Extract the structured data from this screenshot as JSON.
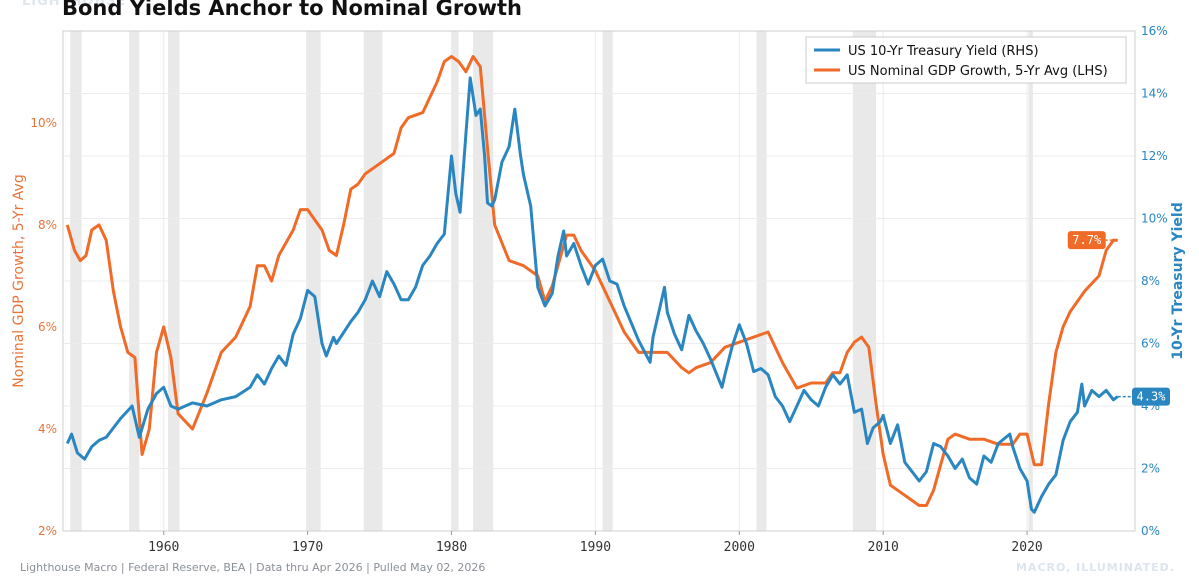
{
  "header": {
    "watermark": "LIGHTHOUSE",
    "title": "Bond Yields Anchor to Nominal Growth"
  },
  "footer": {
    "source": "Lighthouse Macro | Federal Reserve, BEA | Data thru Apr 2026 | Pulled May 02, 2026",
    "tagline": "MACRO, ILLUMINATED."
  },
  "colors": {
    "yield": "#2a86c0",
    "gdp": "#f06a28",
    "recession": "#e9e9e9"
  },
  "chart_data": {
    "type": "line",
    "title": "Bond Yields Anchor to Nominal Growth",
    "xlabel": "",
    "ylabel_left": "Nominal GDP Growth, 5-Yr Avg",
    "ylabel_right": "10-Yr Treasury Yield",
    "xlim": [
      1953.0,
      2027.5
    ],
    "ylim_left": [
      2,
      11.8
    ],
    "ylim_right": [
      0,
      16
    ],
    "x_ticks": [
      1960,
      1970,
      1980,
      1990,
      2000,
      2010,
      2020
    ],
    "x_tick_labels": [
      "1960",
      "1970",
      "1980",
      "1990",
      "2000",
      "2010",
      "2020"
    ],
    "y_left_ticks": [
      2,
      4,
      6,
      8,
      10
    ],
    "y_left_tick_labels": [
      "2%",
      "4%",
      "6%",
      "8%",
      "10%"
    ],
    "y_right_ticks": [
      0,
      2,
      4,
      6,
      8,
      10,
      12,
      14,
      16
    ],
    "y_right_tick_labels": [
      "0%",
      "2%",
      "4%",
      "6%",
      "8%",
      "10%",
      "12%",
      "14%",
      "16%"
    ],
    "grid": true,
    "legend_position": "top-right",
    "recessions": [
      [
        1953.5,
        1954.3
      ],
      [
        1957.6,
        1958.3
      ],
      [
        1960.3,
        1961.1
      ],
      [
        1969.9,
        1970.9
      ],
      [
        1973.9,
        1975.2
      ],
      [
        1980.0,
        1980.5
      ],
      [
        1981.5,
        1982.9
      ],
      [
        1990.5,
        1991.2
      ],
      [
        2001.2,
        2001.9
      ],
      [
        2007.9,
        2009.5
      ],
      [
        2020.1,
        2020.4
      ]
    ],
    "series": [
      {
        "name": "US 10-Yr Treasury Yield (RHS)",
        "axis": "right",
        "end_label": "4.3%",
        "x": [
          1953.3,
          1953.6,
          1954.0,
          1954.5,
          1955.0,
          1955.5,
          1956.0,
          1956.5,
          1957.0,
          1957.8,
          1958.3,
          1958.9,
          1959.5,
          1960.0,
          1960.5,
          1961.0,
          1961.5,
          1962.0,
          1963.0,
          1964.0,
          1965.0,
          1966.0,
          1966.5,
          1967.0,
          1967.5,
          1968.0,
          1968.5,
          1969.0,
          1969.5,
          1970.0,
          1970.5,
          1971.0,
          1971.3,
          1971.8,
          1972.0,
          1973.0,
          1973.5,
          1974.0,
          1974.5,
          1975.0,
          1975.5,
          1976.0,
          1976.5,
          1977.0,
          1977.5,
          1978.0,
          1978.5,
          1979.0,
          1979.5,
          1980.0,
          1980.3,
          1980.6,
          1981.0,
          1981.3,
          1981.7,
          1982.0,
          1982.3,
          1982.5,
          1982.8,
          1983.0,
          1983.5,
          1984.0,
          1984.4,
          1984.8,
          1985.0,
          1985.5,
          1986.0,
          1986.5,
          1987.0,
          1987.4,
          1987.8,
          1988.0,
          1988.5,
          1989.0,
          1989.5,
          1990.0,
          1990.5,
          1991.0,
          1991.5,
          1992.0,
          1993.0,
          1993.8,
          1994.0,
          1994.8,
          1995.0,
          1995.5,
          1996.0,
          1996.5,
          1997.0,
          1997.5,
          1998.0,
          1998.8,
          1999.0,
          1999.5,
          2000.0,
          2000.5,
          2001.0,
          2001.5,
          2002.0,
          2002.5,
          2003.0,
          2003.5,
          2004.0,
          2004.5,
          2005.0,
          2005.5,
          2006.0,
          2006.5,
          2007.0,
          2007.5,
          2008.0,
          2008.5,
          2008.9,
          2009.3,
          2009.8,
          2010.0,
          2010.5,
          2011.0,
          2011.5,
          2012.0,
          2012.5,
          2013.0,
          2013.5,
          2014.0,
          2014.5,
          2015.0,
          2015.5,
          2016.0,
          2016.5,
          2017.0,
          2017.5,
          2018.0,
          2018.8,
          2019.0,
          2019.5,
          2020.0,
          2020.3,
          2020.5,
          2021.0,
          2021.5,
          2022.0,
          2022.5,
          2023.0,
          2023.5,
          2023.8,
          2024.0,
          2024.5,
          2025.0,
          2025.5,
          2026.0,
          2026.3
        ],
        "values": [
          2.8,
          3.1,
          2.5,
          2.3,
          2.7,
          2.9,
          3.0,
          3.3,
          3.6,
          4.0,
          3.0,
          3.9,
          4.4,
          4.6,
          4.0,
          3.9,
          4.0,
          4.1,
          4.0,
          4.2,
          4.3,
          4.6,
          5.0,
          4.7,
          5.2,
          5.6,
          5.3,
          6.3,
          6.8,
          7.7,
          7.5,
          6.0,
          5.6,
          6.2,
          6.0,
          6.7,
          7.0,
          7.4,
          8.0,
          7.5,
          8.3,
          7.9,
          7.4,
          7.4,
          7.8,
          8.5,
          8.8,
          9.2,
          9.5,
          12.0,
          10.8,
          10.2,
          12.7,
          14.5,
          13.3,
          13.5,
          12.0,
          10.5,
          10.4,
          10.6,
          11.8,
          12.3,
          13.5,
          12.0,
          11.4,
          10.4,
          7.8,
          7.2,
          7.6,
          8.8,
          9.6,
          8.8,
          9.2,
          8.5,
          7.9,
          8.5,
          8.7,
          8.0,
          7.9,
          7.2,
          6.1,
          5.4,
          6.2,
          7.8,
          7.0,
          6.3,
          5.8,
          6.9,
          6.4,
          6.0,
          5.5,
          4.6,
          5.0,
          5.9,
          6.6,
          6.0,
          5.1,
          5.2,
          5.0,
          4.3,
          4.0,
          3.5,
          4.0,
          4.5,
          4.2,
          4.0,
          4.6,
          5.0,
          4.7,
          5.0,
          3.8,
          3.9,
          2.8,
          3.3,
          3.5,
          3.7,
          2.8,
          3.4,
          2.2,
          1.9,
          1.6,
          1.9,
          2.8,
          2.7,
          2.4,
          2.0,
          2.3,
          1.7,
          1.5,
          2.4,
          2.2,
          2.8,
          3.1,
          2.7,
          2.0,
          1.6,
          0.7,
          0.6,
          1.1,
          1.5,
          1.8,
          2.9,
          3.5,
          3.8,
          4.7,
          4.0,
          4.5,
          4.3,
          4.5,
          4.2,
          4.3
        ],
        "color": "#2a86c0"
      },
      {
        "name": "US Nominal GDP Growth, 5-Yr Avg (LHS)",
        "axis": "left",
        "end_label": "7.7%",
        "x": [
          1953.3,
          1953.8,
          1954.2,
          1954.6,
          1955.0,
          1955.5,
          1956.0,
          1956.5,
          1957.0,
          1957.5,
          1958.0,
          1958.5,
          1959.0,
          1959.5,
          1960.0,
          1960.5,
          1961.0,
          1962.0,
          1963.0,
          1964.0,
          1965.0,
          1966.0,
          1966.5,
          1967.0,
          1967.5,
          1968.0,
          1969.0,
          1969.5,
          1970.0,
          1971.0,
          1971.5,
          1972.0,
          1972.5,
          1973.0,
          1973.5,
          1974.0,
          1975.0,
          1976.0,
          1976.5,
          1977.0,
          1978.0,
          1979.0,
          1979.5,
          1980.0,
          1980.5,
          1981.0,
          1981.5,
          1982.0,
          1982.5,
          1983.0,
          1984.0,
          1985.0,
          1986.0,
          1986.5,
          1987.0,
          1988.0,
          1988.5,
          1989.0,
          1990.0,
          1991.0,
          1992.0,
          1993.0,
          1994.0,
          1995.0,
          1996.0,
          1996.5,
          1997.0,
          1998.0,
          1999.0,
          2000.0,
          2001.0,
          2002.0,
          2003.0,
          2004.0,
          2005.0,
          2006.0,
          2006.5,
          2007.0,
          2007.5,
          2008.0,
          2008.5,
          2009.0,
          2009.5,
          2010.0,
          2010.5,
          2011.0,
          2011.5,
          2012.0,
          2012.5,
          2013.0,
          2013.5,
          2014.0,
          2014.5,
          2015.0,
          2016.0,
          2017.0,
          2018.0,
          2019.0,
          2019.5,
          2020.0,
          2020.5,
          2021.0,
          2021.5,
          2022.0,
          2022.5,
          2023.0,
          2024.0,
          2025.0,
          2025.5,
          2026.0,
          2026.3
        ],
        "values": [
          8.0,
          7.5,
          7.3,
          7.4,
          7.9,
          8.0,
          7.7,
          6.7,
          6.0,
          5.5,
          5.4,
          3.5,
          4.0,
          5.5,
          6.0,
          5.4,
          4.3,
          4.0,
          4.7,
          5.5,
          5.8,
          6.4,
          7.2,
          7.2,
          6.9,
          7.4,
          7.9,
          8.3,
          8.3,
          7.9,
          7.5,
          7.4,
          8.0,
          8.7,
          8.8,
          9.0,
          9.2,
          9.4,
          9.9,
          10.1,
          10.2,
          10.8,
          11.2,
          11.3,
          11.2,
          11.0,
          11.3,
          11.1,
          9.5,
          8.0,
          7.3,
          7.2,
          7.0,
          6.5,
          6.8,
          7.8,
          7.8,
          7.5,
          7.1,
          6.5,
          5.9,
          5.5,
          5.5,
          5.5,
          5.2,
          5.1,
          5.2,
          5.3,
          5.6,
          5.7,
          5.8,
          5.9,
          5.3,
          4.8,
          4.9,
          4.9,
          5.1,
          5.1,
          5.5,
          5.7,
          5.8,
          5.6,
          4.5,
          3.5,
          2.9,
          2.8,
          2.7,
          2.6,
          2.5,
          2.5,
          2.8,
          3.3,
          3.8,
          3.9,
          3.8,
          3.8,
          3.7,
          3.7,
          3.9,
          3.9,
          3.3,
          3.3,
          4.5,
          5.5,
          6.0,
          6.3,
          6.7,
          7.0,
          7.5,
          7.7,
          7.7
        ],
        "color": "#f06a28"
      }
    ]
  }
}
